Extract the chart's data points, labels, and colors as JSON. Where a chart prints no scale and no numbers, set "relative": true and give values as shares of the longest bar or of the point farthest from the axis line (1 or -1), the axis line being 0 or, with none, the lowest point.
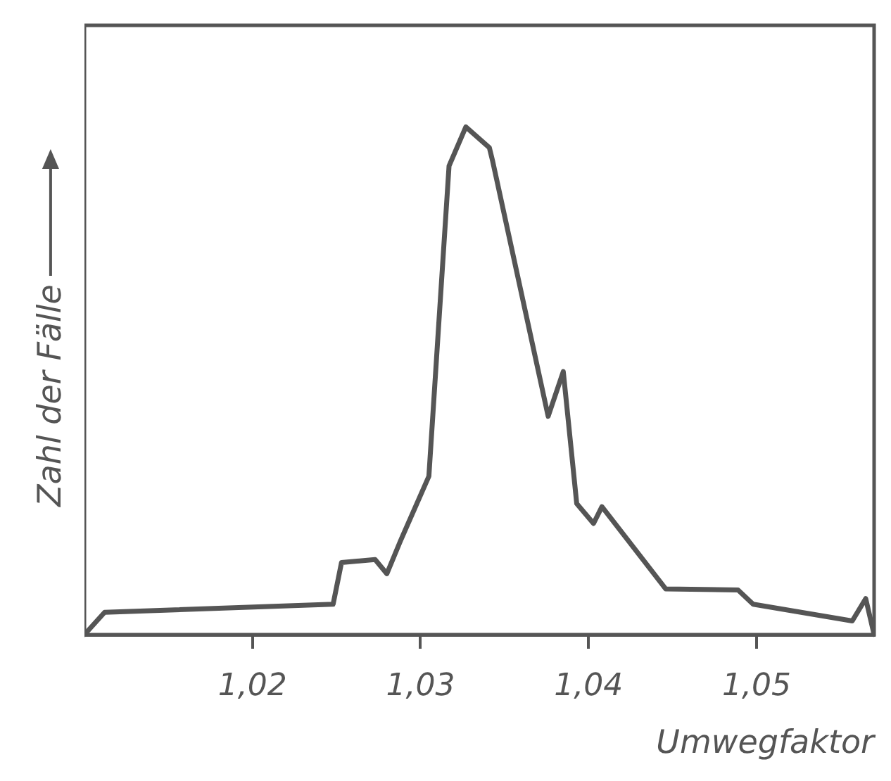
{
  "chart_data": {
    "type": "line",
    "xlabel": "Umwegfaktor",
    "ylabel": "Zahl der Fälle",
    "relative": true,
    "grid": false,
    "legend": false,
    "marker": "none",
    "line_style": "solid",
    "xlim": [
      1.01,
      1.057
    ],
    "xticks": [
      {
        "value": 1.02,
        "label": "1,02"
      },
      {
        "value": 1.03,
        "label": "1,03"
      },
      {
        "value": 1.04,
        "label": "1,04"
      },
      {
        "value": 1.05,
        "label": "1,05"
      }
    ],
    "series": [
      {
        "color": "#555555",
        "x": [
          1.01,
          1.0112,
          1.0248,
          1.0253,
          1.0273,
          1.028,
          1.0288,
          1.0305,
          1.031,
          1.0317,
          1.0327,
          1.0341,
          1.0343,
          1.0376,
          1.0385,
          1.0393,
          1.0403,
          1.0408,
          1.0446,
          1.0489,
          1.0498,
          1.0557,
          1.0565,
          1.057
        ],
        "values": [
          0,
          0.044,
          0.06,
          0.142,
          0.148,
          0.12,
          0.184,
          0.312,
          0.567,
          0.923,
          1,
          0.959,
          0.932,
          0.43,
          0.518,
          0.258,
          0.219,
          0.252,
          0.09,
          0.088,
          0.06,
          0.027,
          0.071,
          0
        ]
      }
    ]
  }
}
